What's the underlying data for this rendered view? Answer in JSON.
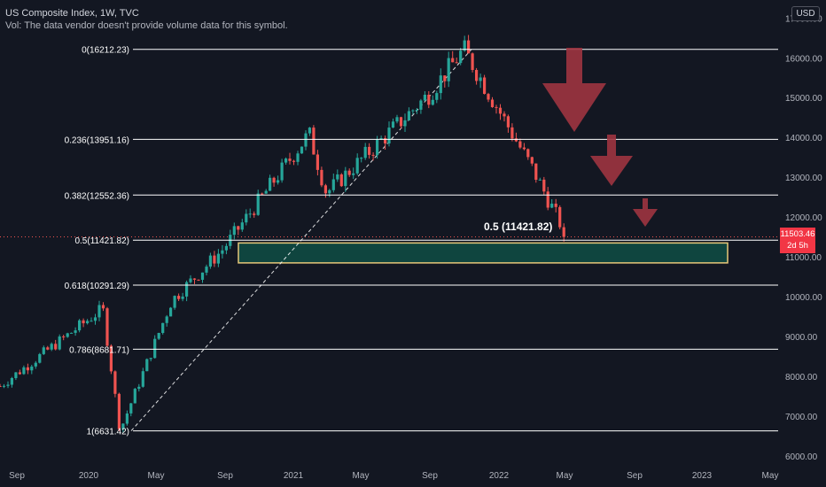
{
  "header": {
    "title": "US Composite Index, 1W, TVC",
    "vol_note": "Vol: The data vendor doesn't provide volume data for this symbol."
  },
  "currency_label": "USD",
  "last_price": {
    "value": "11503.46",
    "countdown": "2d 5h"
  },
  "colors": {
    "background": "#131722",
    "up": "#26a69a",
    "down": "#ef5350",
    "arrow": "#9e3440",
    "zone_fill": "#0f4a43",
    "zone_border": "#e6c879",
    "level_line": "#ffffff"
  },
  "chart_data": {
    "type": "candlestick",
    "title": "US Composite Index, 1W, TVC",
    "y_axis_ticks": [
      "17000.00",
      "16000.00",
      "15000.00",
      "14000.00",
      "13000.00",
      "12000.00",
      "11000.00",
      "10000.00",
      "9000.00",
      "8000.00",
      "7000.00",
      "6000.00"
    ],
    "x_axis_ticks": [
      "Sep",
      "2020",
      "May",
      "Sep",
      "2021",
      "May",
      "Sep",
      "2022",
      "May",
      "Sep",
      "2023",
      "May"
    ],
    "ylim": [
      5800,
      17200
    ],
    "fib_levels": [
      {
        "label": "0(16212.23)",
        "value": 16212.23
      },
      {
        "label": "0.236(13951.16)",
        "value": 13951.16
      },
      {
        "label": "0.382(12552.36)",
        "value": 12552.36
      },
      {
        "label": "0.5(11421.82)",
        "value": 11421.82
      },
      {
        "label": "0.618(10291.29)",
        "value": 10291.29
      },
      {
        "label": "0.786(8681.71)",
        "value": 8681.71
      },
      {
        "label": "1(6631.42)",
        "value": 6631.42
      }
    ],
    "annotation": "0.5 (11421.82)",
    "support_zone": [
      10850,
      11350
    ],
    "trend_line": {
      "from": 6631.42,
      "to": 16212.23
    },
    "key_prices": [
      {
        "date": "2019-08",
        "close": 7750
      },
      {
        "date": "2020-02",
        "close": 9700
      },
      {
        "date": "2020-03",
        "close": 6631.42
      },
      {
        "date": "2020-06",
        "close": 9900
      },
      {
        "date": "2020-09",
        "close": 11200
      },
      {
        "date": "2021-02",
        "close": 14100
      },
      {
        "date": "2021-03",
        "close": 12600
      },
      {
        "date": "2021-09",
        "close": 15100
      },
      {
        "date": "2021-11",
        "close": 16212.23
      },
      {
        "date": "2022-03",
        "close": 13200
      },
      {
        "date": "2022-05",
        "close": 11503.46
      }
    ],
    "bearish_arrows": 3
  }
}
